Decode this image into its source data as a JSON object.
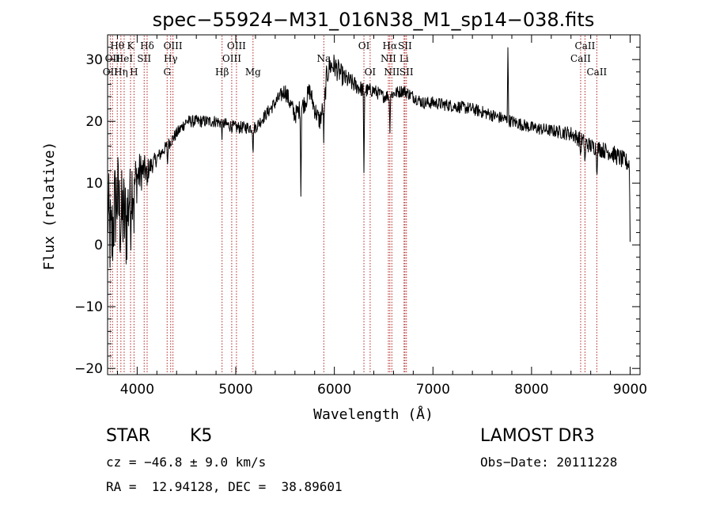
{
  "chart_data": {
    "type": "line",
    "title": "spec−55924−M31_016N38_M1_sp14−038.fits",
    "xlabel": "Wavelength (Å)",
    "ylabel": "Flux (relative)",
    "xlim": [
      3700,
      9100
    ],
    "ylim": [
      -21,
      34
    ],
    "xticks": [
      4000,
      5000,
      6000,
      7000,
      8000,
      9000
    ],
    "yticks": [
      -20,
      -10,
      0,
      10,
      20,
      30
    ],
    "ytick_labels": [
      "−20",
      "−10",
      "0",
      "10",
      "20",
      "30"
    ],
    "series": [
      {
        "name": "flux",
        "anchors_x": [
          3700,
          3720,
          3740,
          3770,
          3800,
          3830,
          3860,
          3890,
          3920,
          3950,
          3980,
          4000,
          4050,
          4100,
          4150,
          4200,
          4250,
          4300,
          4350,
          4400,
          4450,
          4500,
          4600,
          4700,
          4800,
          4900,
          5000,
          5100,
          5200,
          5300,
          5400,
          5450,
          5500,
          5550,
          5600,
          5650,
          5700,
          5750,
          5800,
          5850,
          5900,
          5920,
          5950,
          6000,
          6050,
          6100,
          6200,
          6300,
          6400,
          6500,
          6600,
          6700,
          6800,
          6900,
          7000,
          7200,
          7400,
          7600,
          7800,
          8000,
          8200,
          8400,
          8500,
          8600,
          8700,
          8800,
          8900,
          9000
        ],
        "anchors_y": [
          6,
          2,
          0,
          6,
          8,
          4,
          5,
          3,
          8,
          10,
          10,
          11,
          12,
          12,
          13,
          14,
          15,
          16,
          17,
          18,
          19,
          20,
          20,
          20,
          20,
          19.5,
          19,
          19,
          19,
          21,
          23,
          24,
          25,
          23,
          21,
          22,
          23,
          25,
          22,
          20,
          23,
          27,
          29,
          29,
          28,
          27,
          26,
          25,
          25,
          24,
          24.5,
          25,
          24,
          23,
          23,
          22.5,
          22,
          21,
          20,
          19,
          18.5,
          18,
          17,
          16,
          15.5,
          15,
          14,
          13
        ],
        "noise": [
          8,
          8,
          8,
          8,
          8,
          8,
          8,
          8,
          7,
          6,
          5,
          4,
          3,
          2,
          1.5,
          1.2,
          1,
          1,
          1,
          1,
          1,
          1,
          1,
          1,
          1,
          1,
          1,
          1,
          1,
          1,
          1.1,
          1.2,
          1.4,
          1.5,
          1.5,
          1.5,
          1.5,
          1.6,
          1.6,
          1.6,
          1.8,
          2.0,
          2.0,
          2.0,
          1.8,
          1.6,
          1.4,
          1.2,
          1.1,
          1,
          1,
          1,
          1,
          1,
          1,
          1,
          1,
          1,
          1,
          1,
          1,
          1.2,
          1.3,
          1.3,
          1.3,
          1.4,
          1.5,
          1.5
        ],
        "features": [
          {
            "x": 3933,
            "depth": 6
          },
          {
            "x": 3968,
            "depth": 5
          },
          {
            "x": 4101,
            "depth": 3
          },
          {
            "x": 4308,
            "depth": 3
          },
          {
            "x": 4861,
            "depth": 2
          },
          {
            "x": 5175,
            "depth": 4
          },
          {
            "x": 5660,
            "depth": 14
          },
          {
            "x": 5893,
            "depth": 6
          },
          {
            "x": 6300,
            "depth": 14
          },
          {
            "x": 6563,
            "depth": 6
          },
          {
            "x": 7760,
            "depth": -12
          },
          {
            "x": 8498,
            "depth": 3
          },
          {
            "x": 8542,
            "depth": 4
          },
          {
            "x": 8662,
            "depth": 4
          },
          {
            "x": 9000,
            "depth": 12
          }
        ]
      }
    ],
    "spectral_lines": [
      {
        "x": 3727,
        "labels": [
          {
            "text": "OII",
            "row": 2
          }
        ]
      },
      {
        "x": 3750,
        "labels": [
          {
            "text": "OII",
            "row": 1
          }
        ]
      },
      {
        "x": 3798,
        "labels": [
          {
            "text": "Hθ",
            "row": 0
          }
        ]
      },
      {
        "x": 3835,
        "labels": [
          {
            "text": "Hη",
            "row": 2
          }
        ]
      },
      {
        "x": 3868,
        "labels": [
          {
            "text": "HeI",
            "row": 1
          }
        ]
      },
      {
        "x": 3933,
        "labels": [
          {
            "text": "K",
            "row": 0
          }
        ]
      },
      {
        "x": 3968,
        "labels": [
          {
            "text": "H",
            "row": 2
          }
        ]
      },
      {
        "x": 4071,
        "labels": [
          {
            "text": "SII",
            "row": 1
          }
        ]
      },
      {
        "x": 4101,
        "labels": [
          {
            "text": "Hδ",
            "row": 0
          }
        ]
      },
      {
        "x": 4304,
        "labels": [
          {
            "text": "G",
            "row": 2
          }
        ]
      },
      {
        "x": 4340,
        "labels": [
          {
            "text": "Hγ",
            "row": 1
          }
        ]
      },
      {
        "x": 4363,
        "labels": [
          {
            "text": "OIII",
            "row": 0
          }
        ]
      },
      {
        "x": 4861,
        "labels": [
          {
            "text": "Hβ",
            "row": 2
          }
        ]
      },
      {
        "x": 4959,
        "labels": [
          {
            "text": "OIII",
            "row": 1
          }
        ]
      },
      {
        "x": 5007,
        "labels": [
          {
            "text": "OIII",
            "row": 0
          }
        ]
      },
      {
        "x": 5175,
        "labels": [
          {
            "text": "Mg",
            "row": 2
          }
        ]
      },
      {
        "x": 5893,
        "labels": [
          {
            "text": "Na",
            "row": 1
          }
        ]
      },
      {
        "x": 6300,
        "labels": [
          {
            "text": "OI",
            "row": 0
          }
        ]
      },
      {
        "x": 6363,
        "labels": [
          {
            "text": "OI",
            "row": 2
          }
        ]
      },
      {
        "x": 6548,
        "labels": [
          {
            "text": "NII",
            "row": 1
          }
        ]
      },
      {
        "x": 6563,
        "labels": [
          {
            "text": "Hα",
            "row": 0
          }
        ]
      },
      {
        "x": 6583,
        "labels": [
          {
            "text": "NII",
            "row": 2
          }
        ]
      },
      {
        "x": 6707,
        "labels": [
          {
            "text": "Li",
            "row": 1
          }
        ]
      },
      {
        "x": 6716,
        "labels": [
          {
            "text": "SII",
            "row": 0
          }
        ]
      },
      {
        "x": 6731,
        "labels": [
          {
            "text": "SII",
            "row": 2
          }
        ]
      },
      {
        "x": 8498,
        "labels": [
          {
            "text": "CaII",
            "row": 1
          }
        ]
      },
      {
        "x": 8542,
        "labels": [
          {
            "text": "CaII",
            "row": 0
          }
        ]
      },
      {
        "x": 8662,
        "labels": [
          {
            "text": "CaII",
            "row": 2
          }
        ]
      }
    ]
  },
  "info": {
    "class_label": "STAR",
    "subclass": "K5",
    "survey": "LAMOST DR3",
    "cz": "cz = −46.8 ± 9.0 km/s",
    "obs_date": "Obs−Date: 20111228",
    "coords": "RA =  12.94128, DEC =  38.89601"
  },
  "colors": {
    "spectrum": "#000000",
    "line_markers": "#b22222",
    "axes": "#000000"
  }
}
